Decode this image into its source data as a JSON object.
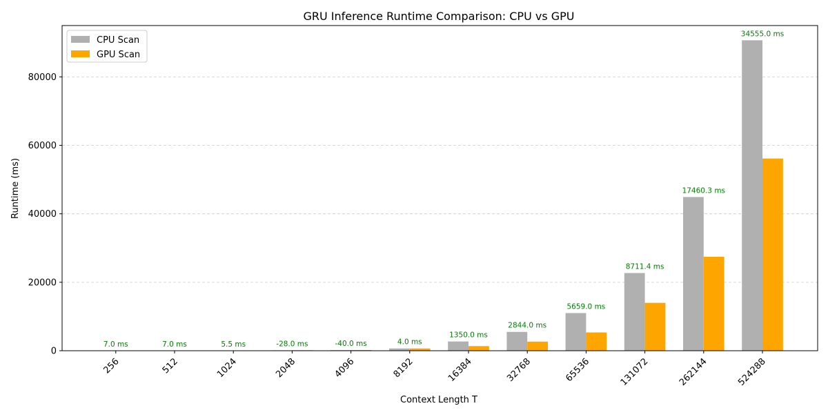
{
  "chart_data": {
    "type": "bar",
    "title": "GRU Inference Runtime Comparison: CPU vs GPU",
    "xlabel": "Context Length T",
    "ylabel": "Runtime (ms)",
    "categories": [
      "256",
      "512",
      "1024",
      "2048",
      "4096",
      "8192",
      "16384",
      "32768",
      "65536",
      "131072",
      "262144",
      "524288"
    ],
    "series": [
      {
        "name": "CPU Scan",
        "color": "#b0b0b0",
        "values": [
          14,
          23,
          32,
          120,
          170,
          660,
          2700,
          5500,
          11000,
          22700,
          44900,
          90700
        ]
      },
      {
        "name": "GPU Scan",
        "color": "#ffa500",
        "values": [
          7,
          16,
          26.5,
          148,
          210,
          656,
          1350,
          2656,
          5341,
          13989,
          27440,
          56145
        ]
      }
    ],
    "annotations": [
      "7.0 ms",
      "7.0 ms",
      "5.5 ms",
      "-28.0 ms",
      "-40.0 ms",
      "4.0 ms",
      "1350.0 ms",
      "2844.0 ms",
      "5659.0 ms",
      "8711.4 ms",
      "17460.3 ms",
      "34555.0 ms"
    ],
    "annotation_color": "#008000",
    "ylim": [
      0,
      95000
    ],
    "yticks": [
      0,
      20000,
      40000,
      60000,
      80000
    ],
    "ytick_labels": [
      "0",
      "20000",
      "40000",
      "60000",
      "80000"
    ],
    "grid": "y-dashed",
    "legend_position": "top-left"
  }
}
